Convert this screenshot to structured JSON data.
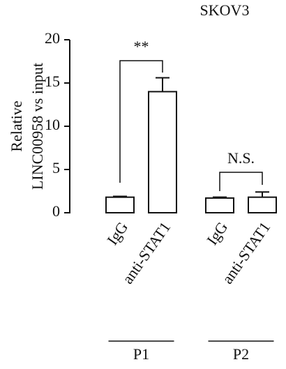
{
  "chart_data": {
    "type": "bar",
    "title": "SKOV3",
    "ylabel": [
      "Relative",
      "LINC00958 vs input"
    ],
    "categories": [
      "IgG",
      "anti-STAT1",
      "IgG",
      "anti-STAT1"
    ],
    "values": [
      1.8,
      14,
      1.7,
      1.8
    ],
    "errors": [
      0.1,
      1.6,
      0.1,
      0.6
    ],
    "groups": [
      "P1",
      "P2"
    ],
    "annotations": [
      "**",
      "N.S."
    ],
    "color": "#ffffff",
    "ylim": [
      0,
      20
    ],
    "yticks": [
      0,
      5,
      10,
      15,
      20
    ]
  }
}
